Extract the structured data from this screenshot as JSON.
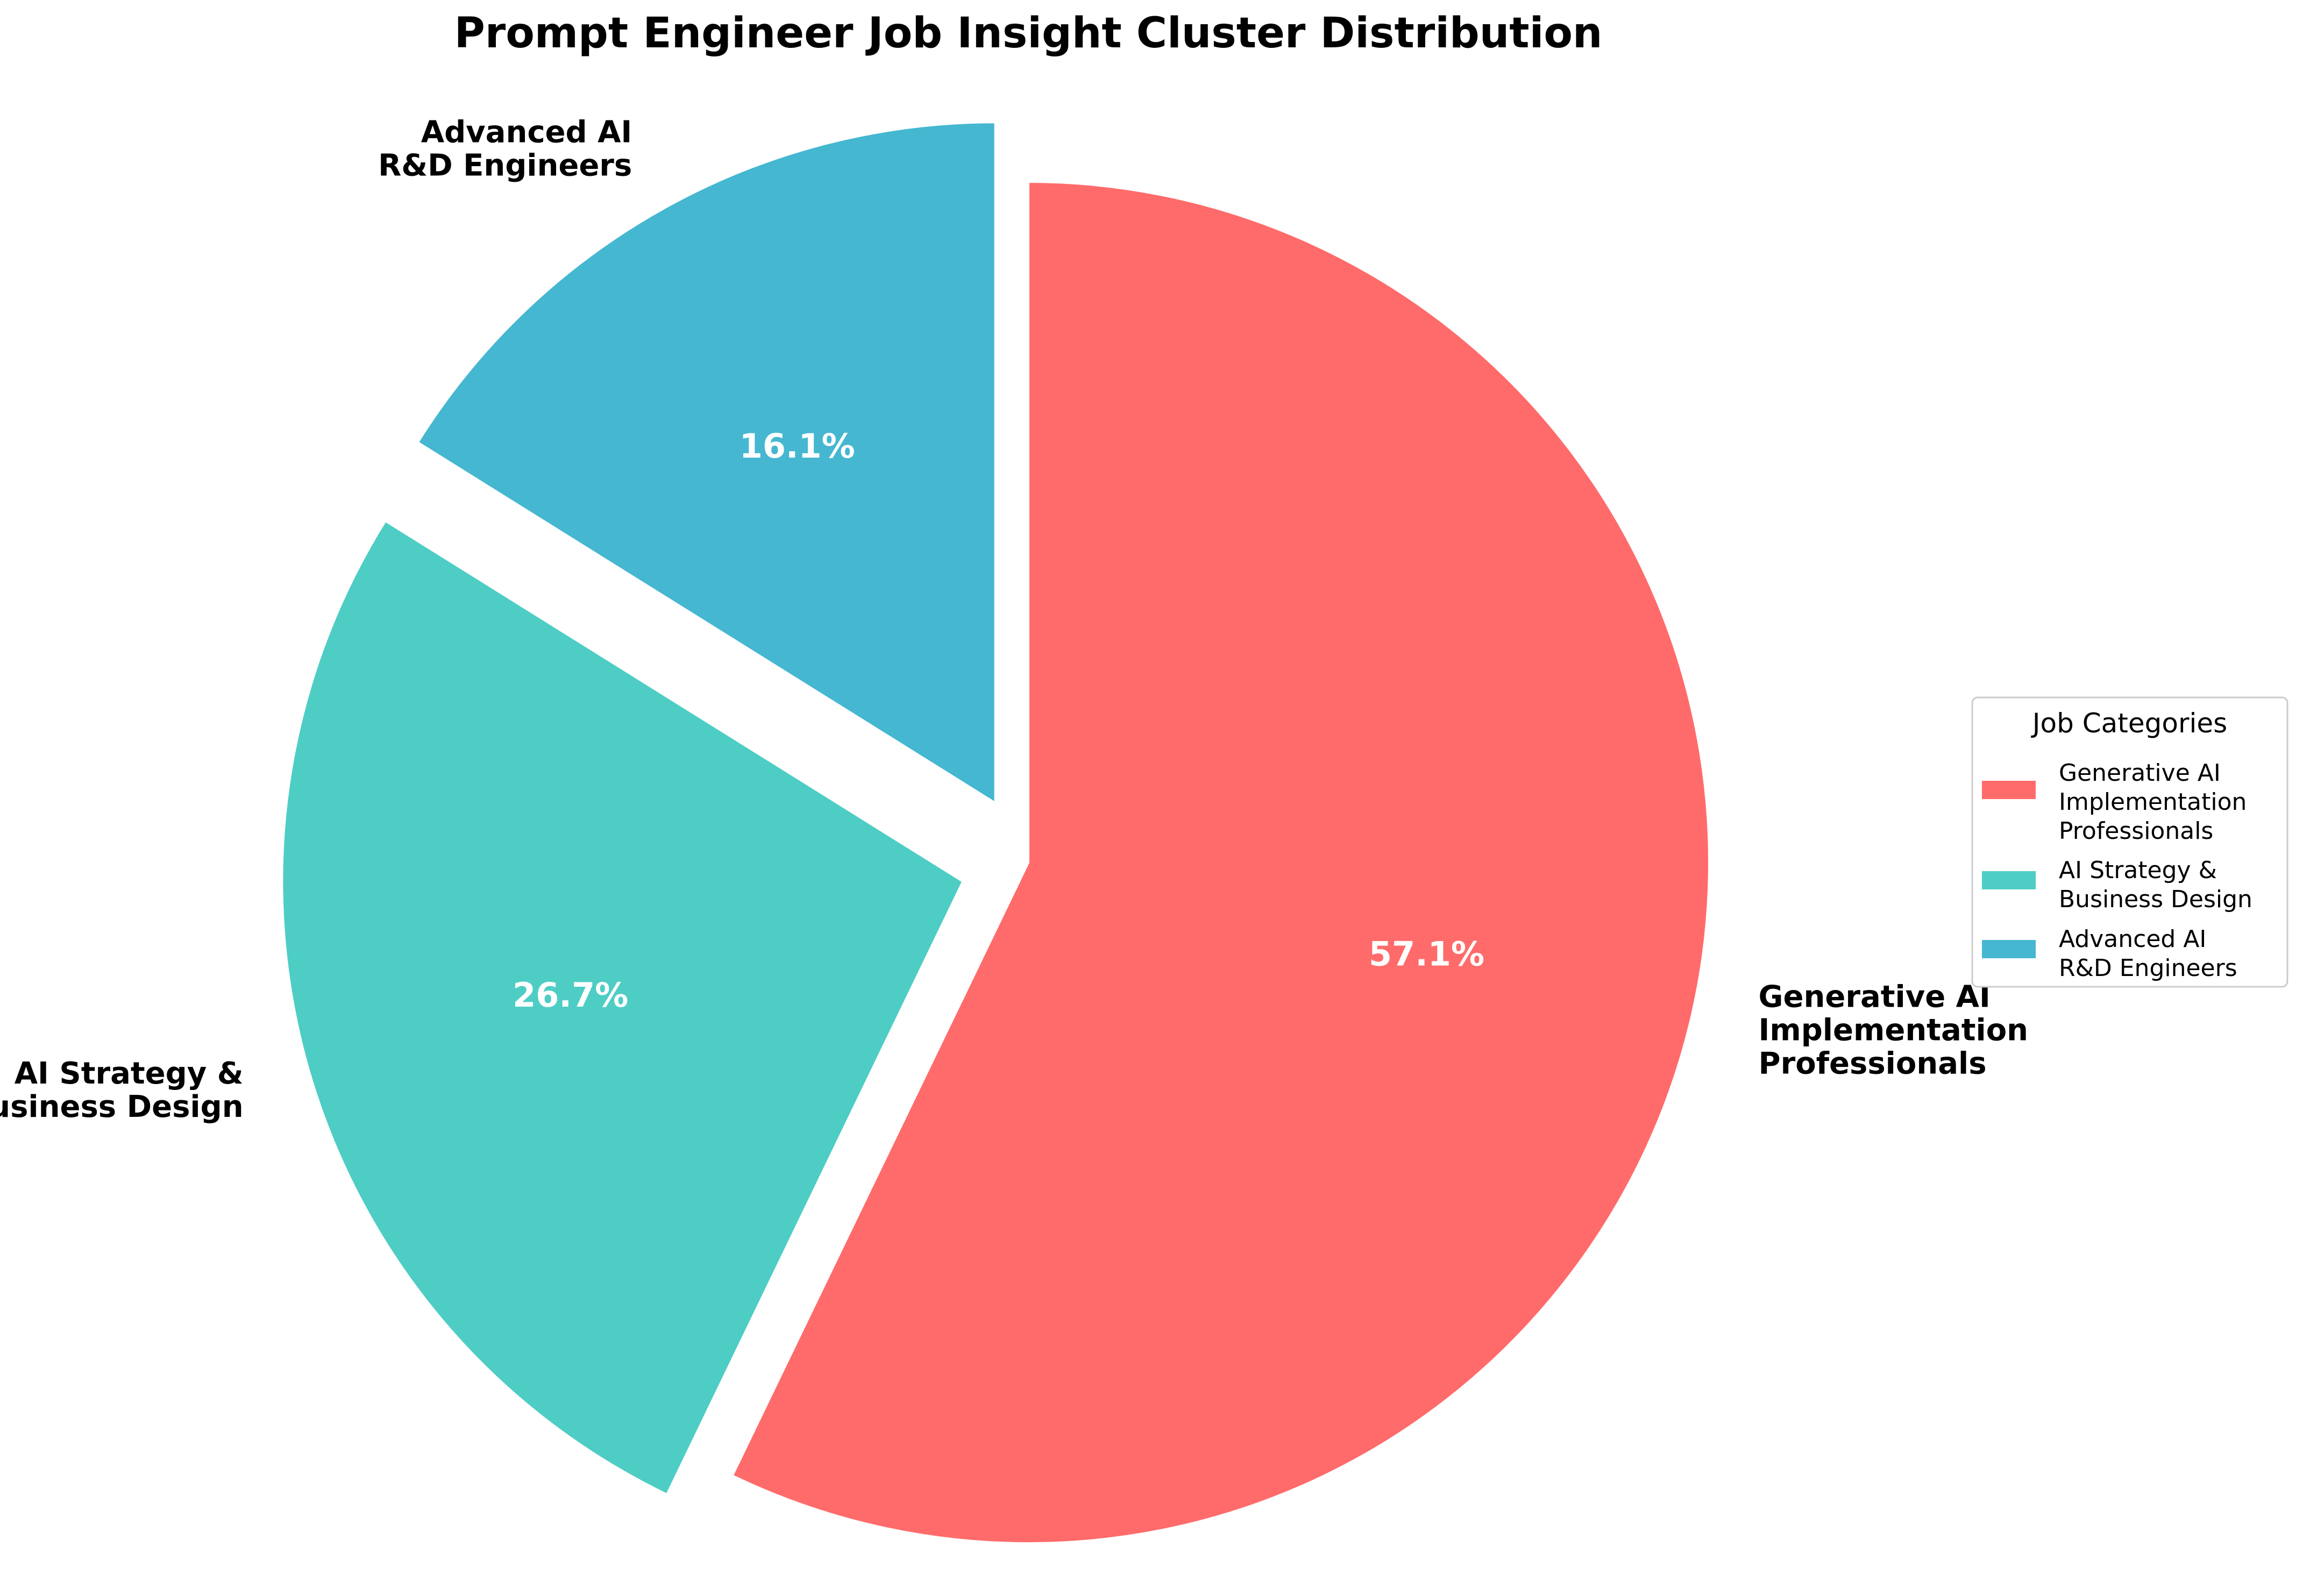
{
  "chart_data": {
    "type": "pie",
    "title": "Prompt Engineer Job Insight Cluster Distribution",
    "start_angle_deg": 90,
    "direction": "clockwise",
    "legend": {
      "title": "Job Categories",
      "placement": "right"
    },
    "slices": [
      {
        "label": "Generative AI\nImplementation\nProfessionals",
        "value": 57.1,
        "pct_label": "57.1%",
        "color": "#FF6B6B"
      },
      {
        "label": "AI Strategy &\nBusiness Design",
        "value": 26.7,
        "pct_label": "26.7%",
        "color": "#4ECDC4"
      },
      {
        "label": "Advanced AI\nR&D Engineers",
        "value": 16.1,
        "pct_label": "16.1%",
        "color": "#45B7D1"
      }
    ]
  }
}
